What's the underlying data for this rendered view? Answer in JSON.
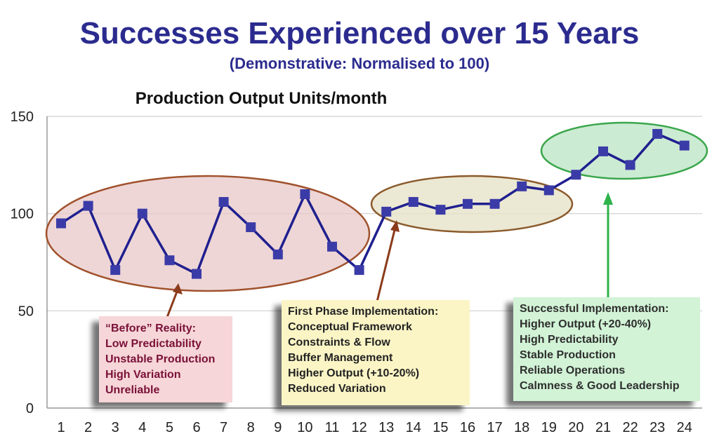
{
  "title": "Successes Experienced over 15 Years",
  "subtitle": "(Demonstrative: Normalised to 100)",
  "colors": {
    "title": "#2b2b8f",
    "line": "#1f1f8f",
    "marker": "#3b3ba8",
    "grid": "#cfcfcf",
    "before_fill": "#e8c8c8",
    "before_stroke": "#a0522d",
    "first_fill": "#e6e2c8",
    "first_stroke": "#8b5a2b",
    "success_fill": "#bfe6c8",
    "success_stroke": "#3aa64a",
    "before_text": "#7a1038",
    "arrow_before": "#8b3a1a",
    "arrow_success": "#2db34a"
  },
  "chart_data": {
    "type": "line",
    "title": "Production Output Units/month",
    "x": [
      1,
      2,
      3,
      4,
      5,
      6,
      7,
      8,
      9,
      10,
      11,
      12,
      13,
      14,
      15,
      16,
      17,
      18,
      19,
      20,
      21,
      22,
      23,
      24
    ],
    "categories": [
      "1",
      "2",
      "3",
      "4",
      "5",
      "6",
      "7",
      "8",
      "9",
      "10",
      "11",
      "12",
      "13",
      "14",
      "15",
      "16",
      "17",
      "18",
      "19",
      "20",
      "21",
      "22",
      "23",
      "24"
    ],
    "series": [
      {
        "values": [
          95,
          104,
          71,
          100,
          76,
          69,
          106,
          93,
          79,
          110,
          83,
          71,
          101,
          106,
          102,
          105,
          105,
          114,
          112,
          120,
          132,
          125,
          141,
          135
        ]
      }
    ],
    "ylim": [
      0,
      150
    ],
    "yticks": [
      0,
      50,
      100,
      150
    ],
    "ytick_labels": [
      "0",
      "50",
      "100",
      "150"
    ],
    "grid": true
  },
  "annotations": {
    "before": {
      "lines": [
        "“Before” Reality:",
        "Low Predictability",
        "Unstable Production",
        "High Variation",
        "Unreliable"
      ]
    },
    "first_phase": {
      "lines": [
        "First Phase Implementation:",
        "Conceptual Framework",
        "Constraints & Flow",
        "Buffer Management",
        "Higher Output (+10-20%)",
        "Reduced Variation"
      ]
    },
    "success": {
      "lines": [
        "Successful Implementation:",
        "Higher Output (+20-40%)",
        "High Predictability",
        "Stable Production",
        "Reliable Operations",
        "Calmness & Good Leadership"
      ]
    }
  }
}
